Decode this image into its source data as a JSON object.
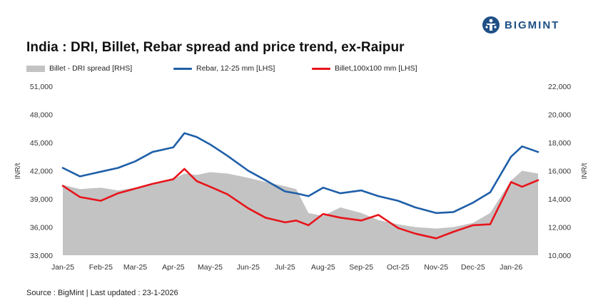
{
  "brand": {
    "name": "BIGMINT",
    "color": "#1f4f86"
  },
  "title": "India : DRI, Billet, Rebar spread and price trend, ex-Raipur",
  "source": "Source : BigMint | Last updated : 23-1-2026",
  "legend": [
    {
      "label": "Billet - DRI spread  [RHS]",
      "color": "#c3c3c3",
      "kind": "area"
    },
    {
      "label": "Rebar, 12-25 mm [LHS]",
      "color": "#1f5fa8",
      "kind": "line"
    },
    {
      "label": "Billet,100x100 mm [LHS]",
      "color": "#e8141b",
      "kind": "line"
    }
  ],
  "chart_data": {
    "type": "line",
    "title": "India : DRI, Billet, Rebar spread and price trend, ex-Raipur",
    "ylabel": "INR/t",
    "y2label": "INR/t",
    "ylim": [
      33000,
      51000
    ],
    "y2lim": [
      10000,
      22000
    ],
    "yticks": [
      "33,000",
      "36,000",
      "39,000",
      "42,000",
      "45,000",
      "48,000",
      "51,000"
    ],
    "y2ticks": [
      "10,000",
      "12,000",
      "14,000",
      "16,000",
      "18,000",
      "20,000",
      "22,000"
    ],
    "xticks": [
      "Jan-25",
      "Feb-25",
      "Mar-25",
      "Apr-25",
      "May-25",
      "Jun-25",
      "Jul-25",
      "Aug-25",
      "Sep-25",
      "Oct-25",
      "Nov-25",
      "Dec-25",
      "Jan-26"
    ],
    "x": [
      "2025-01-01",
      "2025-01-15",
      "2025-02-01",
      "2025-02-15",
      "2025-03-01",
      "2025-03-15",
      "2025-04-01",
      "2025-04-10",
      "2025-04-20",
      "2025-05-01",
      "2025-05-15",
      "2025-06-01",
      "2025-06-15",
      "2025-07-01",
      "2025-07-10",
      "2025-07-20",
      "2025-08-01",
      "2025-08-15",
      "2025-09-01",
      "2025-09-15",
      "2025-10-01",
      "2025-10-15",
      "2025-11-01",
      "2025-11-15",
      "2025-12-01",
      "2025-12-15",
      "2026-01-01",
      "2026-01-10",
      "2026-01-23"
    ],
    "series": [
      {
        "name": "Rebar, 12-25 mm [LHS]",
        "axis": "left",
        "color": "#1f5fa8",
        "type": "line",
        "values": [
          42300,
          41400,
          41900,
          42300,
          43000,
          44000,
          44500,
          46000,
          45600,
          44800,
          43600,
          42000,
          41000,
          39800,
          39600,
          39300,
          40200,
          39600,
          39900,
          39300,
          38800,
          38100,
          37500,
          37600,
          38600,
          39700,
          43500,
          44600,
          44000
        ]
      },
      {
        "name": "Billet,100x100 mm [LHS]",
        "axis": "left",
        "color": "#e8141b",
        "type": "line",
        "values": [
          40400,
          39200,
          38800,
          39600,
          40100,
          40600,
          41100,
          42200,
          40900,
          40300,
          39500,
          38000,
          37000,
          36500,
          36700,
          36200,
          37400,
          37000,
          36700,
          37300,
          35900,
          35300,
          34800,
          35500,
          36200,
          36300,
          40800,
          40300,
          41000
        ]
      },
      {
        "name": "Billet - DRI spread  [RHS]",
        "axis": "right",
        "color": "#c3c3c3",
        "type": "area",
        "values": [
          15000,
          14700,
          14800,
          14600,
          14800,
          15100,
          15400,
          15800,
          15700,
          15900,
          15800,
          15500,
          15200,
          14900,
          14700,
          13000,
          12800,
          13400,
          13000,
          12500,
          12200,
          12000,
          11900,
          12000,
          12300,
          13000,
          15300,
          16000,
          15800
        ]
      }
    ]
  }
}
